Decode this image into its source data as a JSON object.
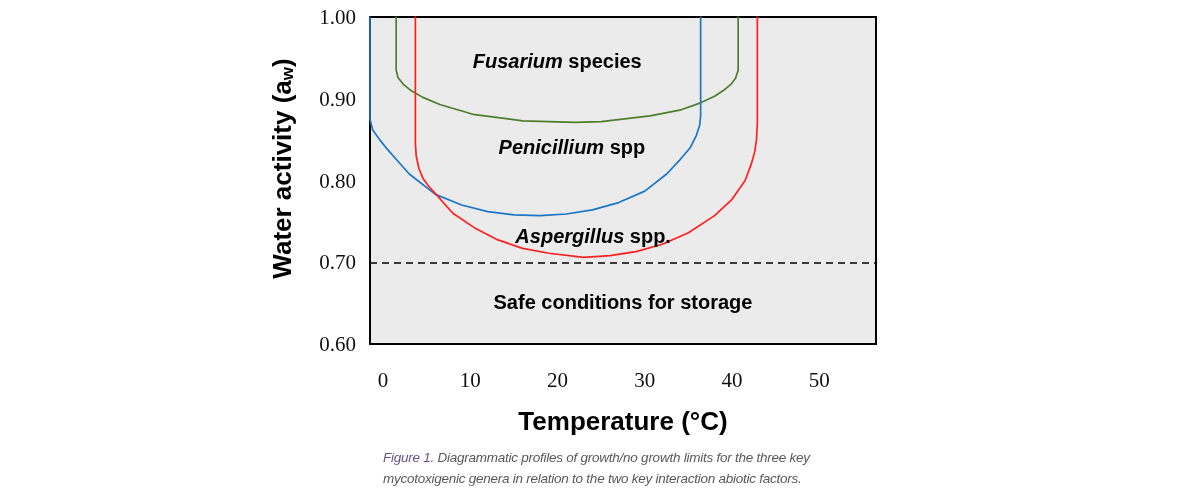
{
  "chart_data": {
    "type": "line",
    "xlabel": "Temperature (°C)",
    "ylabel": "Water activity (a$_{w}$)",
    "series": [
      {
        "color": "#4e7d2c",
        "x": [
          1.5,
          1.5,
          1.7,
          2.3,
          3.2,
          4.5,
          6.5,
          10.3,
          16,
          22,
          25,
          30.6,
          34,
          36.4,
          38,
          39,
          39.9,
          40.4,
          40.7,
          40.7
        ],
        "values": [
          1.0,
          0.935,
          0.926,
          0.918,
          0.91,
          0.902,
          0.893,
          0.881,
          0.873,
          0.871,
          0.872,
          0.879,
          0.886,
          0.895,
          0.903,
          0.91,
          0.918,
          0.925,
          0.935,
          1.0
        ]
      },
      {
        "color": "#1a76c8",
        "x": [
          -1.5,
          -1.5,
          -1.2,
          -0.4,
          0.5,
          1.5,
          3,
          6,
          9,
          12,
          15,
          18,
          21,
          24,
          27,
          30,
          32.5,
          34,
          35.2,
          35.9,
          36.3,
          36.4,
          36.4
        ],
        "values": [
          1.0,
          0.875,
          0.862,
          0.85,
          0.838,
          0.826,
          0.808,
          0.783,
          0.77,
          0.762,
          0.758,
          0.757,
          0.759,
          0.764,
          0.773,
          0.787,
          0.808,
          0.825,
          0.84,
          0.855,
          0.868,
          0.88,
          1.0
        ]
      },
      {
        "color": "#ff1f1f",
        "x": [
          3.7,
          3.7,
          3.8,
          4.1,
          4.6,
          5.3,
          6,
          8,
          10.5,
          13,
          16,
          19,
          23,
          26,
          29,
          32,
          35,
          38,
          40,
          41.5,
          42.2,
          42.6,
          42.8,
          42.9,
          42.9
        ],
        "values": [
          1.0,
          0.845,
          0.83,
          0.815,
          0.802,
          0.792,
          0.784,
          0.76,
          0.742,
          0.728,
          0.717,
          0.711,
          0.706,
          0.708,
          0.713,
          0.722,
          0.736,
          0.757,
          0.777,
          0.8,
          0.82,
          0.835,
          0.85,
          0.87,
          1.0
        ]
      }
    ],
    "xlim": [
      -1.5,
      56.5
    ],
    "xticks": [
      0,
      10,
      20,
      30,
      40,
      50
    ],
    "ylim": [
      0.6,
      1.0
    ],
    "yticks": [
      {
        "value": 0.6,
        "label": "0.60"
      },
      {
        "value": 0.7,
        "label": "0.70"
      },
      {
        "value": 0.8,
        "label": "0.80"
      },
      {
        "value": 0.9,
        "label": "0.90"
      },
      {
        "value": 1.0,
        "label": "1.00"
      }
    ],
    "ref_lines": [
      {
        "axis": "y",
        "value": 0.7,
        "label": "Safe conditions for storage",
        "color": "#000000",
        "line_style": "dashed"
      }
    ],
    "annotations": [
      "Fusarium species",
      "Penicillium spp",
      "Aspergillus spp.",
      "Figure 1. Diagrammatic profiles of growth/no growth limits for the three key mycotoxigenic genera in relation to the two key interaction abiotic factors."
    ],
    "grid": false,
    "marker": "none",
    "line_style": "solid"
  }
}
